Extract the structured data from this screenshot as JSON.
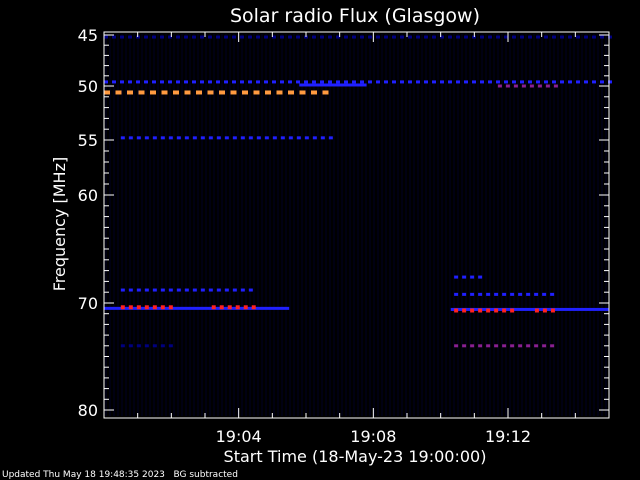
{
  "chart_data": {
    "type": "heatmap",
    "title": "Solar radio Flux (Glasgow)",
    "xlabel": "Start Time (18-May-23 19:00:00)",
    "ylabel": "Frequency [MHz]",
    "x_unit": "minutes after 19:00",
    "xlim": [
      0,
      15
    ],
    "ylim": [
      80,
      45
    ],
    "x_ticks": [
      {
        "value": 4,
        "label": "19:04"
      },
      {
        "value": 8,
        "label": "19:08"
      },
      {
        "value": 12,
        "label": "19:12"
      }
    ],
    "y_ticks": [
      {
        "value": 45,
        "label": "45"
      },
      {
        "value": 50,
        "label": "50"
      },
      {
        "value": 55,
        "label": "55"
      },
      {
        "value": 60,
        "label": "60"
      },
      {
        "value": 70,
        "label": "70"
      },
      {
        "value": 80,
        "label": "80"
      }
    ],
    "colors": {
      "background": "#000000",
      "axis": "#ffffff",
      "low": "#000080",
      "mid": "#2020ff",
      "high": "#ff2020",
      "peak": "#ff9a40",
      "purple": "#8a2090"
    },
    "bands": [
      {
        "freq": 45.2,
        "x": [
          0,
          15
        ],
        "color": "low",
        "style": "dash"
      },
      {
        "freq": 49.6,
        "x": [
          0,
          15
        ],
        "color": "mid",
        "style": "dash"
      },
      {
        "freq": 50.6,
        "x": [
          0,
          6.6
        ],
        "color": "peak",
        "style": "dash"
      },
      {
        "freq": 49.9,
        "x": [
          5.8,
          7.8
        ],
        "color": "mid",
        "style": "solid"
      },
      {
        "freq": 50.0,
        "x": [
          11.7,
          13.4
        ],
        "color": "purple",
        "style": "dash"
      },
      {
        "freq": 54.8,
        "x": [
          0.5,
          6.7
        ],
        "color": "mid",
        "style": "dash"
      },
      {
        "freq": 68.8,
        "x": [
          0.5,
          4.5
        ],
        "color": "mid",
        "style": "dash"
      },
      {
        "freq": 70.5,
        "x": [
          0,
          5.5
        ],
        "color": "mid",
        "style": "solid"
      },
      {
        "freq": 70.4,
        "x": [
          0.5,
          2.0
        ],
        "color": "high",
        "style": "dash"
      },
      {
        "freq": 70.4,
        "x": [
          3.2,
          4.6
        ],
        "color": "high",
        "style": "dash"
      },
      {
        "freq": 74.0,
        "x": [
          0.5,
          2.0
        ],
        "color": "low",
        "style": "dash"
      },
      {
        "freq": 67.6,
        "x": [
          10.4,
          11.2
        ],
        "color": "mid",
        "style": "dash"
      },
      {
        "freq": 69.2,
        "x": [
          10.4,
          13.3
        ],
        "color": "mid",
        "style": "dash"
      },
      {
        "freq": 70.6,
        "x": [
          10.3,
          15
        ],
        "color": "mid",
        "style": "solid"
      },
      {
        "freq": 70.7,
        "x": [
          10.4,
          12.2
        ],
        "color": "high",
        "style": "dash"
      },
      {
        "freq": 70.7,
        "x": [
          12.8,
          13.3
        ],
        "color": "high",
        "style": "dash"
      },
      {
        "freq": 74.0,
        "x": [
          10.4,
          13.3
        ],
        "color": "purple",
        "style": "dash"
      }
    ]
  },
  "footer": {
    "updated": "Updated Thu May 18 19:48:35 2023",
    "bg": "BG subtracted"
  }
}
